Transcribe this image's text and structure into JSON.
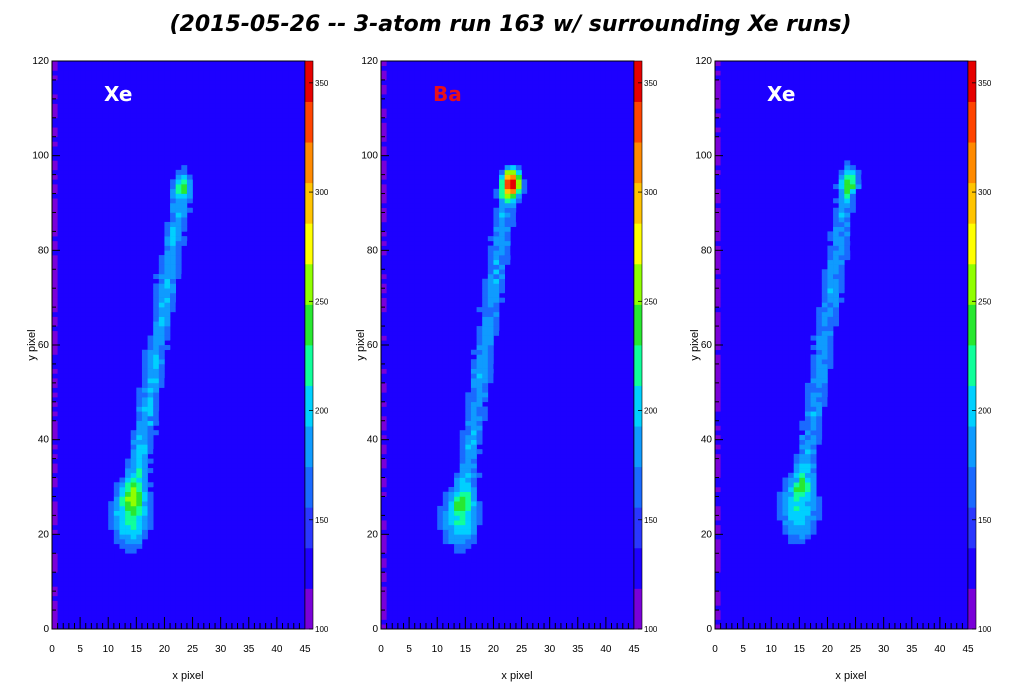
{
  "title": "(2015-05-26 -- 3-atom run 163 w/ surrounding Xe runs)",
  "colors": {
    "overlay_white": "#ffffff",
    "overlay_red": "#e8101a"
  },
  "chart_data": [
    {
      "type": "heatmap",
      "panel_label": "Xe",
      "label_color": "#ffffff",
      "xlabel": "x pixel",
      "ylabel": "y pixel",
      "xlim": [
        0,
        45
      ],
      "ylim": [
        0,
        120
      ],
      "x_ticks": [
        0,
        5,
        10,
        15,
        20,
        25,
        30,
        35,
        40,
        45
      ],
      "y_ticks": [
        0,
        20,
        40,
        60,
        80,
        100,
        120
      ],
      "colorbar": {
        "min": 100,
        "max": 360,
        "ticks": [
          100,
          150,
          200,
          250,
          300,
          350
        ]
      },
      "background_level": 125,
      "blobs": [
        {
          "x": 14,
          "y": 24,
          "amp": 100,
          "sx": 2.6,
          "sy": 5.0
        },
        {
          "x": 23.3,
          "y": 94.5,
          "amp": 80,
          "sx": 1.2,
          "sy": 2.2
        }
      ],
      "track": {
        "x0": 14.5,
        "y0": 28,
        "x1": 23,
        "y1": 92,
        "amp": 65,
        "width": 1.5
      }
    },
    {
      "type": "heatmap",
      "panel_label": "Ba",
      "label_color": "#e8101a",
      "xlabel": "x pixel",
      "ylabel": "y pixel",
      "xlim": [
        0,
        45
      ],
      "ylim": [
        0,
        120
      ],
      "x_ticks": [
        0,
        5,
        10,
        15,
        20,
        25,
        30,
        35,
        40,
        45
      ],
      "y_ticks": [
        0,
        20,
        40,
        60,
        80,
        100,
        120
      ],
      "colorbar": {
        "min": 100,
        "max": 360,
        "ticks": [
          100,
          150,
          200,
          250,
          300,
          350
        ]
      },
      "background_level": 125,
      "blobs": [
        {
          "x": 14,
          "y": 23,
          "amp": 90,
          "sx": 2.5,
          "sy": 4.5
        },
        {
          "x": 23.2,
          "y": 94.5,
          "amp": 230,
          "sx": 1.2,
          "sy": 2.0
        }
      ],
      "track": {
        "x0": 14.5,
        "y0": 27,
        "x1": 22.5,
        "y1": 92,
        "amp": 60,
        "width": 1.5
      }
    },
    {
      "type": "heatmap",
      "panel_label": "Xe",
      "label_color": "#ffffff",
      "xlabel": "x pixel",
      "ylabel": "y pixel",
      "xlim": [
        0,
        45
      ],
      "ylim": [
        0,
        120
      ],
      "x_ticks": [
        0,
        5,
        10,
        15,
        20,
        25,
        30,
        35,
        40,
        45
      ],
      "y_ticks": [
        0,
        20,
        40,
        60,
        80,
        100,
        120
      ],
      "colorbar": {
        "min": 100,
        "max": 360,
        "ticks": [
          100,
          150,
          200,
          250,
          300,
          350
        ]
      },
      "background_level": 125,
      "blobs": [
        {
          "x": 15,
          "y": 25,
          "amp": 85,
          "sx": 2.7,
          "sy": 5.0
        },
        {
          "x": 23.8,
          "y": 95.5,
          "amp": 85,
          "sx": 1.3,
          "sy": 2.2
        }
      ],
      "track": {
        "x0": 15.5,
        "y0": 30,
        "x1": 23.5,
        "y1": 93,
        "amp": 60,
        "width": 1.5
      }
    }
  ]
}
